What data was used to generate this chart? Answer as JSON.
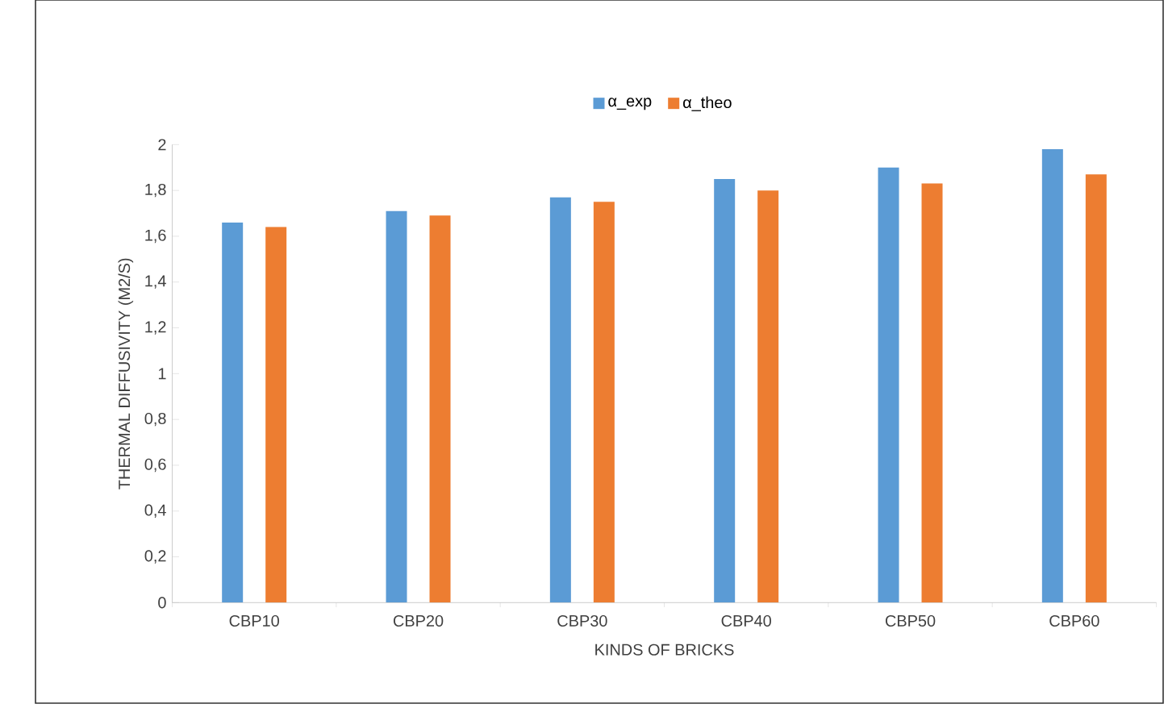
{
  "chart_data": {
    "type": "bar",
    "xlabel": "KINDS OF BRICKS",
    "ylabel": "THERMAL DIFFUSIVITY (M2/S)",
    "categories": [
      "CBP10",
      "CBP20",
      "CBP30",
      "CBP40",
      "CBP50",
      "CBP60"
    ],
    "series": [
      {
        "name": "α_exp",
        "color": "#5b9bd5",
        "values": [
          1.66,
          1.71,
          1.77,
          1.85,
          1.9,
          1.98
        ]
      },
      {
        "name": "α_theo",
        "color": "#ed7d31",
        "values": [
          1.64,
          1.69,
          1.75,
          1.8,
          1.83,
          1.87
        ]
      }
    ],
    "ylim": [
      0,
      2
    ],
    "yticks": [
      {
        "value": 0,
        "label": "0"
      },
      {
        "value": 0.2,
        "label": "0,2"
      },
      {
        "value": 0.4,
        "label": "0,4"
      },
      {
        "value": 0.6,
        "label": "0,6"
      },
      {
        "value": 0.8,
        "label": "0,8"
      },
      {
        "value": 1,
        "label": "1"
      },
      {
        "value": 1.2,
        "label": "1,2"
      },
      {
        "value": 1.4,
        "label": "1,4"
      },
      {
        "value": 1.6,
        "label": "1,6"
      },
      {
        "value": 1.8,
        "label": "1,8"
      },
      {
        "value": 2,
        "label": "2"
      }
    ],
    "grid": false,
    "legend": "top"
  }
}
